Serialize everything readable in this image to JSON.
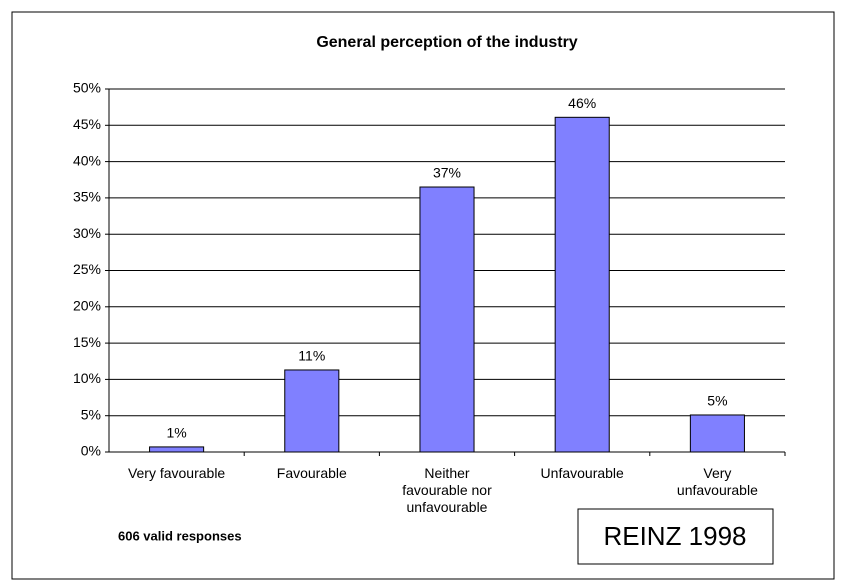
{
  "chart_data": {
    "type": "bar",
    "title": "General perception of the industry",
    "categories": [
      "Very favourable",
      "Favourable",
      "Neither favourable nor unfavourable",
      "Unfavourable",
      "Very unfavourable"
    ],
    "values": [
      0.7,
      11.3,
      36.5,
      46.1,
      5.1
    ],
    "value_labels": [
      "1%",
      "11%",
      "37%",
      "46%",
      "5%"
    ],
    "color": "#8080ff",
    "ylim": [
      0,
      50
    ],
    "yticks": [
      {
        "value": 0,
        "label": "0%"
      },
      {
        "value": 5,
        "label": "5%"
      },
      {
        "value": 10,
        "label": "10%"
      },
      {
        "value": 15,
        "label": "15%"
      },
      {
        "value": 20,
        "label": "20%"
      },
      {
        "value": 25,
        "label": "25%"
      },
      {
        "value": 30,
        "label": "30%"
      },
      {
        "value": 35,
        "label": "35%"
      },
      {
        "value": 40,
        "label": "40%"
      },
      {
        "value": 45,
        "label": "45%"
      },
      {
        "value": 50,
        "label": "50%"
      }
    ],
    "grid": true,
    "annotations": [
      "606 valid responses",
      "REINZ 1998"
    ]
  }
}
